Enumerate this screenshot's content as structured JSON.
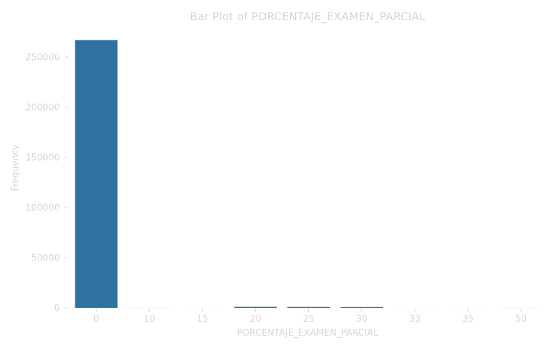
{
  "chart_data": {
    "type": "bar",
    "title": "Bar Plot of PORCENTAJE_EXAMEN_PARCIAL",
    "xlabel": "PORCENTAJE_EXAMEN_PARCIAL",
    "ylabel": "Frequency",
    "categories": [
      "0",
      "10",
      "15",
      "20",
      "25",
      "30",
      "33",
      "35",
      "50"
    ],
    "values": [
      267000,
      30,
      20,
      1000,
      900,
      800,
      20,
      20,
      30
    ],
    "ylim": [
      0,
      270000
    ],
    "yticks": [
      0,
      50000,
      100000,
      150000,
      200000,
      250000
    ],
    "ytick_labels": [
      "0",
      "50000",
      "100000",
      "150000",
      "200000",
      "250000"
    ],
    "grid": false,
    "legend": "none",
    "colors": {
      "bar": "#2e72a0",
      "text": "#d6d6d6",
      "tick": "#d6d6d6"
    }
  }
}
